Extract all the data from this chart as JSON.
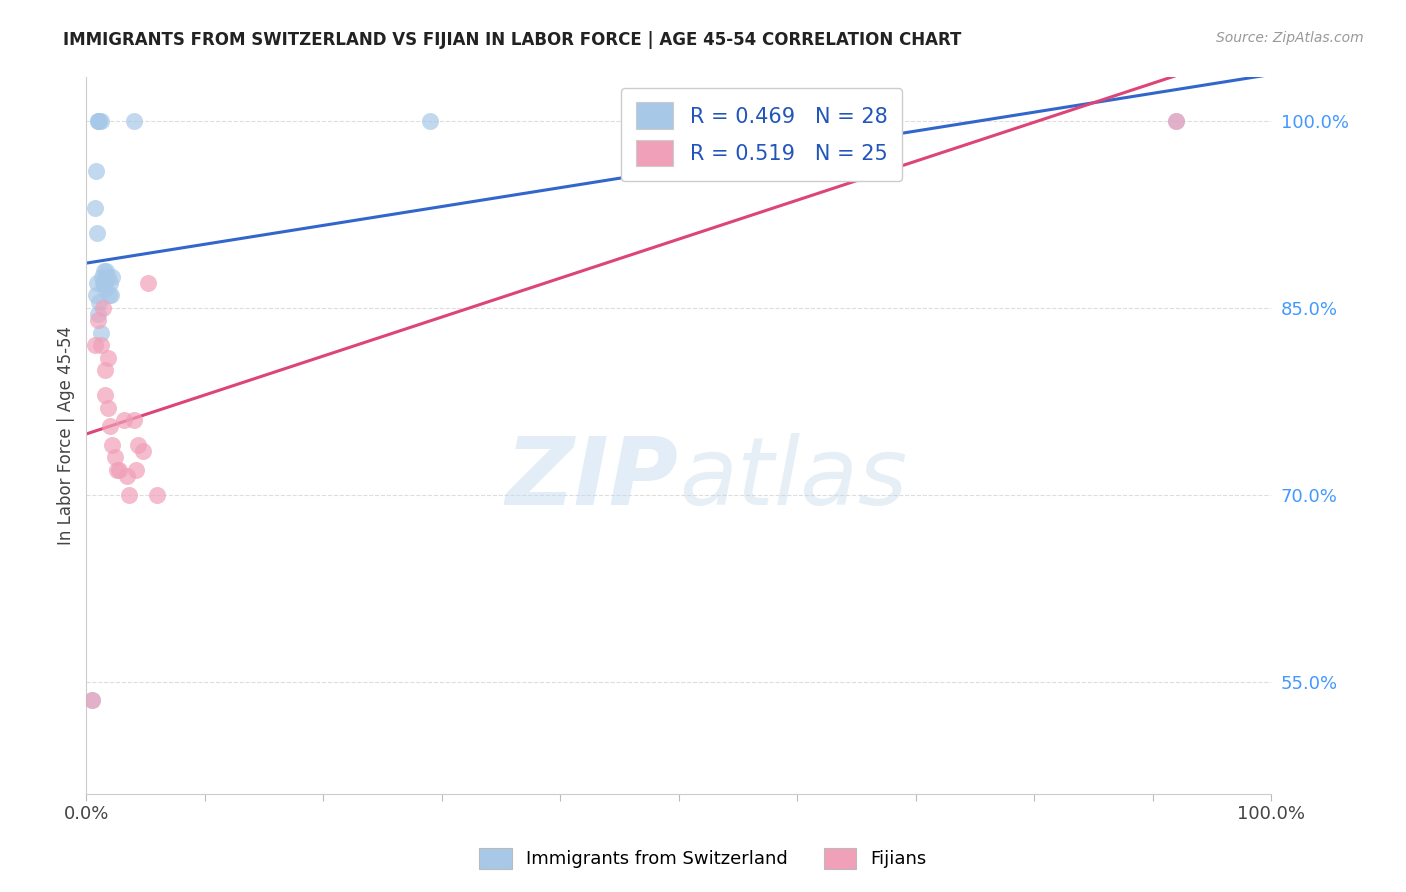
{
  "title": "IMMIGRANTS FROM SWITZERLAND VS FIJIAN IN LABOR FORCE | AGE 45-54 CORRELATION CHART",
  "source": "Source: ZipAtlas.com",
  "ylabel": "In Labor Force | Age 45-54",
  "xlim": [
    0.0,
    1.0
  ],
  "ylim": [
    0.46,
    1.035
  ],
  "yticks": [
    0.55,
    0.7,
    0.85,
    1.0
  ],
  "ytick_labels": [
    "55.0%",
    "70.0%",
    "85.0%",
    "100.0%"
  ],
  "xticks": [
    0.0,
    0.1,
    0.2,
    0.3,
    0.4,
    0.5,
    0.6,
    0.7,
    0.8,
    0.9,
    1.0
  ],
  "xtick_labels": [
    "0.0%",
    "",
    "",
    "",
    "",
    "",
    "",
    "",
    "",
    "",
    "100.0%"
  ],
  "blue_R": 0.469,
  "blue_N": 28,
  "pink_R": 0.519,
  "pink_N": 25,
  "blue_color": "#a8c8e8",
  "pink_color": "#f0a0b8",
  "blue_line_color": "#3366cc",
  "pink_line_color": "#dd4477",
  "legend_label_blue": "Immigrants from Switzerland",
  "legend_label_pink": "Fijians",
  "blue_dots_x": [
    0.005,
    0.007,
    0.008,
    0.009,
    0.01,
    0.01,
    0.011,
    0.012,
    0.013,
    0.014,
    0.015,
    0.015,
    0.016,
    0.016,
    0.017,
    0.018,
    0.019,
    0.02,
    0.021,
    0.022,
    0.008,
    0.009,
    0.01,
    0.011,
    0.012,
    0.04,
    0.29,
    0.92
  ],
  "blue_dots_y": [
    0.535,
    0.93,
    0.86,
    0.87,
    1.0,
    1.0,
    1.0,
    1.0,
    0.875,
    0.87,
    0.87,
    0.88,
    0.87,
    0.865,
    0.88,
    0.875,
    0.86,
    0.87,
    0.86,
    0.875,
    0.96,
    0.91,
    0.845,
    0.855,
    0.83,
    1.0,
    1.0,
    1.0
  ],
  "pink_dots_x": [
    0.005,
    0.007,
    0.01,
    0.012,
    0.014,
    0.016,
    0.016,
    0.018,
    0.02,
    0.022,
    0.024,
    0.026,
    0.028,
    0.032,
    0.034,
    0.036,
    0.04,
    0.042,
    0.044,
    0.048,
    0.052,
    0.06,
    0.018,
    0.6,
    0.92
  ],
  "pink_dots_y": [
    0.535,
    0.82,
    0.84,
    0.82,
    0.85,
    0.8,
    0.78,
    0.77,
    0.755,
    0.74,
    0.73,
    0.72,
    0.72,
    0.76,
    0.715,
    0.7,
    0.76,
    0.72,
    0.74,
    0.735,
    0.87,
    0.7,
    0.81,
    1.0,
    1.0
  ],
  "blue_line_x0": 0.0,
  "blue_line_x1": 1.0,
  "pink_line_x0": 0.0,
  "pink_line_x1": 1.0,
  "watermark_zip": "ZIP",
  "watermark_atlas": "atlas",
  "background_color": "#ffffff",
  "grid_color": "#dddddd",
  "title_color": "#222222",
  "source_color": "#999999",
  "ylabel_color": "#444444",
  "tick_color_y": "#4499ff",
  "tick_color_x": "#444444"
}
